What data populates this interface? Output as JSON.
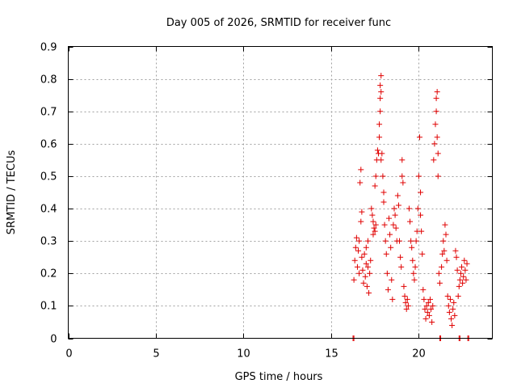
{
  "chart_data": {
    "type": "scatter",
    "title": "Day 005 of 2026, SRMTID for receiver func",
    "xlabel": "GPS time / hours",
    "ylabel": "SRMTID / TECUs",
    "xlim": [
      0,
      24.2
    ],
    "ylim": [
      0,
      0.9
    ],
    "xticks": [
      0,
      5,
      10,
      15,
      20
    ],
    "xtick_labels": [
      "0",
      "5",
      "10",
      "15",
      "20"
    ],
    "yticks": [
      0,
      0.1,
      0.2,
      0.3,
      0.4,
      0.5,
      0.6,
      0.7,
      0.8,
      0.9
    ],
    "ytick_labels": [
      "0",
      "0.1",
      "0.2",
      "0.3",
      "0.4",
      "0.5",
      "0.6",
      "0.7",
      "0.8",
      "0.9"
    ],
    "grid": true,
    "marker": "+",
    "color": "#e00000",
    "series": [
      {
        "name": "SRMTID",
        "points": [
          [
            16.3,
            0.18
          ],
          [
            16.35,
            0.24
          ],
          [
            16.4,
            0.28
          ],
          [
            16.45,
            0.31
          ],
          [
            16.5,
            0.22
          ],
          [
            16.55,
            0.27
          ],
          [
            16.6,
            0.3
          ],
          [
            16.6,
            0.2
          ],
          [
            16.65,
            0.48
          ],
          [
            16.7,
            0.52
          ],
          [
            16.7,
            0.36
          ],
          [
            16.75,
            0.39
          ],
          [
            16.75,
            0.25
          ],
          [
            16.8,
            0.21
          ],
          [
            16.85,
            0.17
          ],
          [
            16.9,
            0.26
          ],
          [
            16.95,
            0.19
          ],
          [
            17.0,
            0.23
          ],
          [
            17.0,
            0.28
          ],
          [
            17.05,
            0.16
          ],
          [
            17.1,
            0.22
          ],
          [
            17.1,
            0.3
          ],
          [
            17.15,
            0.14
          ],
          [
            17.2,
            0.2
          ],
          [
            17.25,
            0.24
          ],
          [
            17.3,
            0.4
          ],
          [
            17.35,
            0.38
          ],
          [
            17.4,
            0.36
          ],
          [
            17.45,
            0.34
          ],
          [
            17.5,
            0.33
          ],
          [
            17.55,
            0.35
          ],
          [
            17.4,
            0.32
          ],
          [
            17.5,
            0.47
          ],
          [
            17.55,
            0.5
          ],
          [
            17.6,
            0.55
          ],
          [
            17.65,
            0.58
          ],
          [
            17.7,
            0.57
          ],
          [
            17.75,
            0.62
          ],
          [
            17.75,
            0.66
          ],
          [
            17.8,
            0.7
          ],
          [
            17.8,
            0.74
          ],
          [
            17.8,
            0.78
          ],
          [
            17.85,
            0.81
          ],
          [
            17.85,
            0.76
          ],
          [
            17.85,
            0.55
          ],
          [
            17.9,
            0.57
          ],
          [
            17.95,
            0.5
          ],
          [
            18.0,
            0.45
          ],
          [
            18.0,
            0.42
          ],
          [
            18.05,
            0.35
          ],
          [
            18.1,
            0.3
          ],
          [
            18.15,
            0.26
          ],
          [
            18.2,
            0.2
          ],
          [
            18.25,
            0.15
          ],
          [
            18.3,
            0.37
          ],
          [
            18.35,
            0.32
          ],
          [
            18.4,
            0.28
          ],
          [
            18.45,
            0.18
          ],
          [
            18.5,
            0.12
          ],
          [
            18.55,
            0.35
          ],
          [
            18.6,
            0.4
          ],
          [
            18.65,
            0.38
          ],
          [
            18.7,
            0.34
          ],
          [
            18.75,
            0.3
          ],
          [
            18.8,
            0.44
          ],
          [
            18.85,
            0.41
          ],
          [
            18.9,
            0.3
          ],
          [
            18.95,
            0.25
          ],
          [
            19.0,
            0.22
          ],
          [
            19.05,
            0.5
          ],
          [
            19.05,
            0.55
          ],
          [
            19.1,
            0.48
          ],
          [
            19.15,
            0.16
          ],
          [
            19.2,
            0.13
          ],
          [
            19.25,
            0.11
          ],
          [
            19.3,
            0.09
          ],
          [
            19.35,
            0.12
          ],
          [
            19.4,
            0.1
          ],
          [
            19.45,
            0.4
          ],
          [
            19.5,
            0.36
          ],
          [
            19.55,
            0.3
          ],
          [
            19.6,
            0.28
          ],
          [
            19.65,
            0.24
          ],
          [
            19.7,
            0.2
          ],
          [
            19.75,
            0.18
          ],
          [
            19.8,
            0.22
          ],
          [
            19.85,
            0.3
          ],
          [
            19.9,
            0.33
          ],
          [
            19.95,
            0.4
          ],
          [
            20.0,
            0.5
          ],
          [
            20.05,
            0.62
          ],
          [
            20.1,
            0.45
          ],
          [
            20.1,
            0.38
          ],
          [
            20.15,
            0.33
          ],
          [
            20.2,
            0.26
          ],
          [
            20.25,
            0.15
          ],
          [
            20.3,
            0.12
          ],
          [
            20.35,
            0.09
          ],
          [
            20.4,
            0.06
          ],
          [
            20.45,
            0.1
          ],
          [
            20.5,
            0.08
          ],
          [
            20.55,
            0.11
          ],
          [
            20.6,
            0.07
          ],
          [
            20.65,
            0.12
          ],
          [
            20.7,
            0.09
          ],
          [
            20.75,
            0.05
          ],
          [
            20.8,
            0.1
          ],
          [
            20.85,
            0.55
          ],
          [
            20.9,
            0.6
          ],
          [
            20.95,
            0.66
          ],
          [
            21.0,
            0.7
          ],
          [
            21.0,
            0.74
          ],
          [
            21.05,
            0.76
          ],
          [
            21.05,
            0.62
          ],
          [
            21.1,
            0.57
          ],
          [
            21.1,
            0.5
          ],
          [
            21.15,
            0.2
          ],
          [
            21.2,
            0.17
          ],
          [
            21.3,
            0.22
          ],
          [
            21.35,
            0.26
          ],
          [
            21.4,
            0.3
          ],
          [
            21.45,
            0.27
          ],
          [
            21.5,
            0.35
          ],
          [
            21.55,
            0.32
          ],
          [
            21.6,
            0.24
          ],
          [
            21.65,
            0.13
          ],
          [
            21.7,
            0.1
          ],
          [
            21.75,
            0.08
          ],
          [
            21.8,
            0.12
          ],
          [
            21.85,
            0.06
          ],
          [
            21.9,
            0.04
          ],
          [
            21.95,
            0.09
          ],
          [
            22.0,
            0.11
          ],
          [
            22.05,
            0.07
          ],
          [
            22.1,
            0.27
          ],
          [
            22.15,
            0.25
          ],
          [
            22.2,
            0.21
          ],
          [
            22.25,
            0.13
          ],
          [
            22.3,
            0.16
          ],
          [
            22.35,
            0.18
          ],
          [
            22.4,
            0.2
          ],
          [
            22.45,
            0.22
          ],
          [
            22.5,
            0.17
          ],
          [
            22.55,
            0.19
          ],
          [
            22.6,
            0.24
          ],
          [
            22.65,
            0.21
          ],
          [
            22.7,
            0.18
          ],
          [
            22.75,
            0.23
          ],
          [
            16.25,
            0
          ],
          [
            16.3,
            0
          ],
          [
            21.2,
            0
          ],
          [
            21.25,
            0
          ],
          [
            22.3,
            0
          ],
          [
            22.35,
            0
          ],
          [
            22.8,
            0
          ],
          [
            22.85,
            0
          ]
        ]
      }
    ]
  }
}
